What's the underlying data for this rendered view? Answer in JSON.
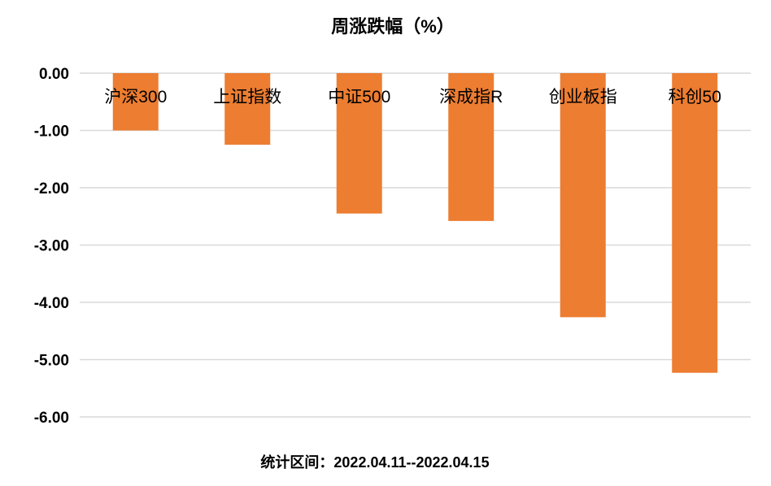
{
  "chart_data": {
    "type": "bar",
    "title": "周涨跌幅（%）",
    "categories": [
      "沪深300",
      "上证指数",
      "中证500",
      "深成指R",
      "创业板指",
      "科创50"
    ],
    "values": [
      -1.0,
      -1.25,
      -2.45,
      -2.58,
      -4.26,
      -5.23
    ],
    "ylim": [
      -6,
      0
    ],
    "yticks": [
      "0.00",
      "-1.00",
      "-2.00",
      "-3.00",
      "-4.00",
      "-5.00",
      "-6.00"
    ],
    "ytick_values": [
      0,
      -1,
      -2,
      -3,
      -4,
      -5,
      -6
    ],
    "grid": true,
    "legend": "none",
    "bar_color": "#ED7D31",
    "grid_color": "#D9D9D9"
  },
  "footer": {
    "text": "统计区间：2022.04.11--2022.04.15"
  }
}
